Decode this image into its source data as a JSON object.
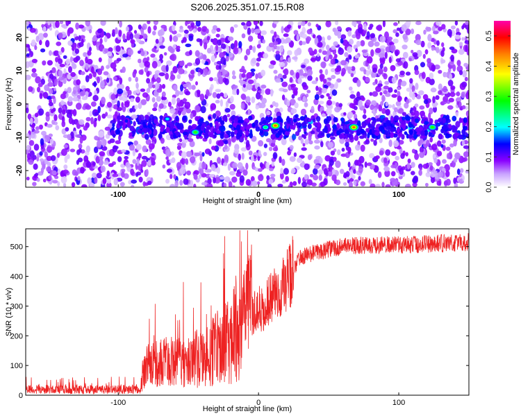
{
  "title": "S206.2025.351.07.15.R08",
  "chart_data": [
    {
      "type": "heatmap",
      "xlabel": "Height of straight line (km)",
      "ylabel": "Frequency (Hz)",
      "xlim": [
        -166,
        150
      ],
      "ylim": [
        -25,
        25
      ],
      "x_ticks": [
        -100,
        0,
        100
      ],
      "y_ticks": [
        -20,
        -10,
        0,
        10,
        20
      ],
      "colorbar": {
        "label": "Normalized spectral amplitude",
        "range": [
          0,
          0.55
        ],
        "ticks": [
          0.0,
          0.1,
          0.2,
          0.3,
          0.4,
          0.5
        ],
        "colors": [
          "#ffffff",
          "#8a00ff",
          "#0000ff",
          "#00ffff",
          "#00ff00",
          "#ffff00",
          "#ff8000",
          "#ff0000",
          "#ff00aa"
        ]
      },
      "signal_band": {
        "x_range": [
          -105,
          150
        ],
        "frequency_center_hz": -7,
        "frequency_halfwidth_hz": 3
      },
      "peaks": [
        {
          "x": -45,
          "y": -8.5,
          "value": 0.3
        },
        {
          "x": 12,
          "y": -6.5,
          "value": 0.45
        },
        {
          "x": 68,
          "y": -7,
          "value": 0.45
        },
        {
          "x": 124,
          "y": -7,
          "value": 0.3
        },
        {
          "x": -65,
          "y": -4.5,
          "value": 0.2
        },
        {
          "x": 5,
          "y": -7,
          "value": 0.25
        }
      ]
    },
    {
      "type": "line",
      "xlabel": "Height of straight line (km)",
      "ylabel": "SNR (10 * v/v)",
      "xlim": [
        -166,
        150
      ],
      "ylim": [
        0,
        560
      ],
      "x_ticks": [
        -100,
        0,
        100
      ],
      "y_ticks": [
        0,
        100,
        200,
        300,
        400,
        500
      ],
      "color": "#ee2222",
      "series": [
        {
          "x": [
            -166,
            -100,
            -85,
            -80,
            -70,
            -60,
            -50,
            -40,
            -35,
            -30,
            -25,
            -20,
            -15,
            -10,
            -5,
            0,
            5,
            10,
            15,
            20,
            25,
            30,
            40,
            50,
            60,
            80,
            100,
            120,
            150
          ],
          "values": [
            18,
            18,
            20,
            95,
            100,
            110,
            115,
            120,
            130,
            150,
            160,
            185,
            205,
            235,
            270,
            285,
            305,
            330,
            355,
            385,
            425,
            465,
            480,
            490,
            500,
            505,
            505,
            510,
            515
          ]
        }
      ]
    }
  ]
}
